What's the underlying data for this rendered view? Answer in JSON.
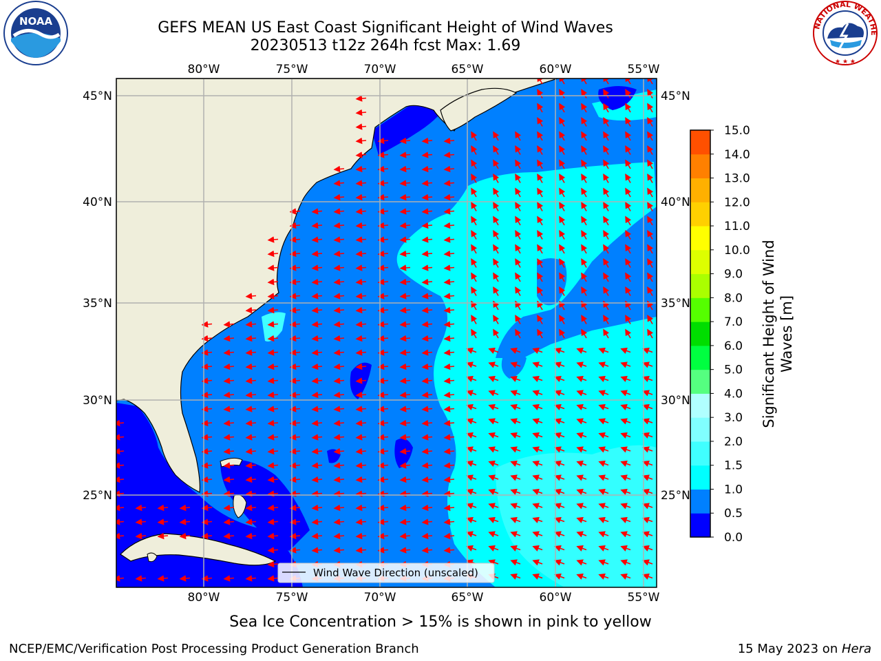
{
  "title": {
    "line1": "GEFS MEAN US East Coast Significant Height of Wind Waves",
    "line2": "20230513 t12z 264h fcst   Max: 1.69"
  },
  "map": {
    "lon_ticks": [
      "80°W",
      "75°W",
      "70°W",
      "65°W",
      "60°W",
      "55°W"
    ],
    "lat_ticks": [
      "45°N",
      "40°N",
      "35°N",
      "30°N",
      "25°N"
    ],
    "legend_label": "Wind Wave Direction (unscaled)",
    "land_color": "#efeedb",
    "arrow_color": "#ff0000"
  },
  "colorbar": {
    "label_line1": "Significant Height of Wind",
    "label_line2": "Waves [m]",
    "ticks": [
      "0.0",
      "0.5",
      "1.0",
      "1.5",
      "2.0",
      "3.0",
      "4.0",
      "5.0",
      "6.0",
      "7.0",
      "8.0",
      "9.0",
      "10.0",
      "11.0",
      "12.0",
      "13.0",
      "14.0",
      "15.0"
    ],
    "colors": [
      "#0000ff",
      "#0080ff",
      "#00ffff",
      "#40ffff",
      "#80ffff",
      "#b0ffff",
      "#55ff80",
      "#00ff40",
      "#00dd00",
      "#55ff00",
      "#aaff00",
      "#ddff00",
      "#ffff00",
      "#ffd000",
      "#ffb000",
      "#ff8000",
      "#ff5000",
      "#ff2000",
      "#ff0000"
    ]
  },
  "footer": {
    "subtitle": "Sea Ice Concentration > 15% is shown in pink to yellow",
    "left": "NCEP/EMC/Verification Post Processing Product Generation Branch",
    "right_date": "15 May 2023 on ",
    "right_machine": "Hera"
  },
  "logos": {
    "left": "NOAA",
    "right": "NATIONAL WEATHER SERVICE"
  }
}
